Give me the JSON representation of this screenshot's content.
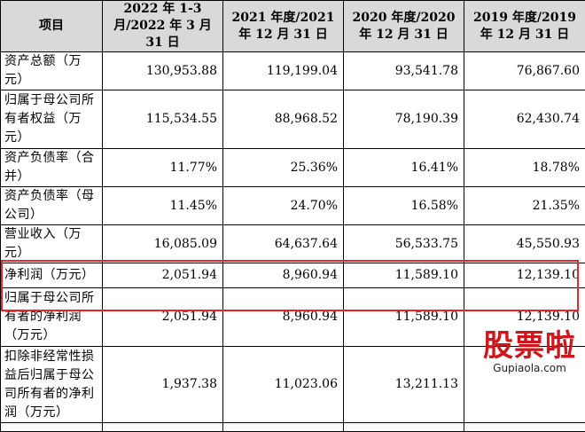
{
  "table": {
    "headers": [
      "项目",
      "2022 年 1-3 月/2022 年 3 月 31 日",
      "2021 年度/2021 年 12 月 31 日",
      "2020 年度/2020 年 12 月 31 日",
      "2019 年度/2019 年 12 月 31 日"
    ],
    "rows": [
      {
        "label": "资产总额（万元）",
        "values": [
          "130,953.88",
          "119,199.04",
          "93,541.78",
          "76,867.60"
        ]
      },
      {
        "label": "归属于母公司所有者权益（万元）",
        "values": [
          "115,534.55",
          "88,968.52",
          "78,190.39",
          "62,430.74"
        ]
      },
      {
        "label": "资产负债率（合并）",
        "values": [
          "11.77%",
          "25.36%",
          "16.41%",
          "18.78%"
        ]
      },
      {
        "label": "资产负债率（母公司）",
        "values": [
          "11.45%",
          "24.70%",
          "16.58%",
          "21.35%"
        ]
      },
      {
        "label": "营业收入（万元）",
        "values": [
          "16,085.09",
          "64,637.64",
          "56,533.75",
          "45,550.93"
        ]
      },
      {
        "label": "净利润（万元）",
        "values": [
          "2,051.94",
          "8,960.94",
          "11,589.10",
          "12,139.10"
        ]
      },
      {
        "label": "归属于母公司所有者的净利润（万元）",
        "values": [
          "2,051.94",
          "8,960.94",
          "11,589.10",
          "12,139.10"
        ]
      },
      {
        "label": "扣除非经常性损益后归属于母公司所有者的净利润（万元）",
        "values": [
          "1,937.38",
          "11,023.06",
          "13,211.13",
          ""
        ]
      }
    ]
  },
  "watermark": {
    "logo": "股票啦",
    "url": "Gupiaola.com"
  }
}
